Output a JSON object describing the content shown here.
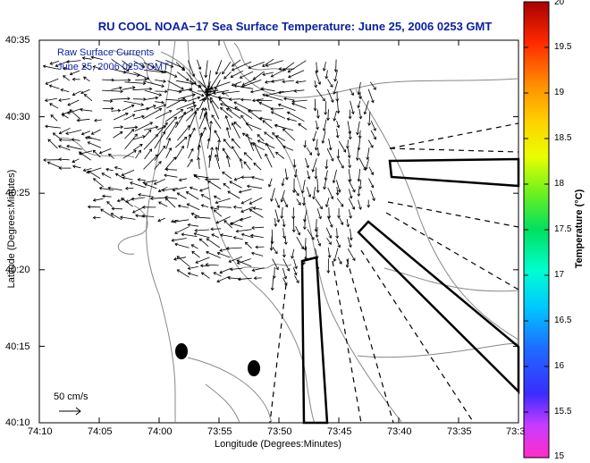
{
  "title": "RU COOL   NOAA−17  Sea Surface Temperature:  June 25, 2006 0253 GMT",
  "map": {
    "x_label": "Longitude (Degrees:Minutes)",
    "y_label": "Latitude (Degrees:Minutes)",
    "x_ticks": [
      "74:10",
      "74:05",
      "74:00",
      "73:55",
      "73:50",
      "73:45",
      "73:40",
      "73:35",
      "73:3"
    ],
    "y_ticks": [
      "40:35",
      "40:30",
      "40:25",
      "40:20",
      "40:15",
      "40:10"
    ],
    "legend_line1": "Raw Surface Currents",
    "legend_line2": "June 25, 2006 0253 GMT",
    "scale_label": "50 cm/s"
  },
  "colorbar": {
    "label": "Temperature (°C)",
    "ticks": [
      "20",
      "19.5",
      "19",
      "18.5",
      "18",
      "17.5",
      "17",
      "16.5",
      "16",
      "15.5",
      "15"
    ]
  },
  "colors": {
    "title": "#0a1fa0",
    "legend_text": "#0a1fa0",
    "contours": "#888888",
    "arrows": "#000000"
  }
}
